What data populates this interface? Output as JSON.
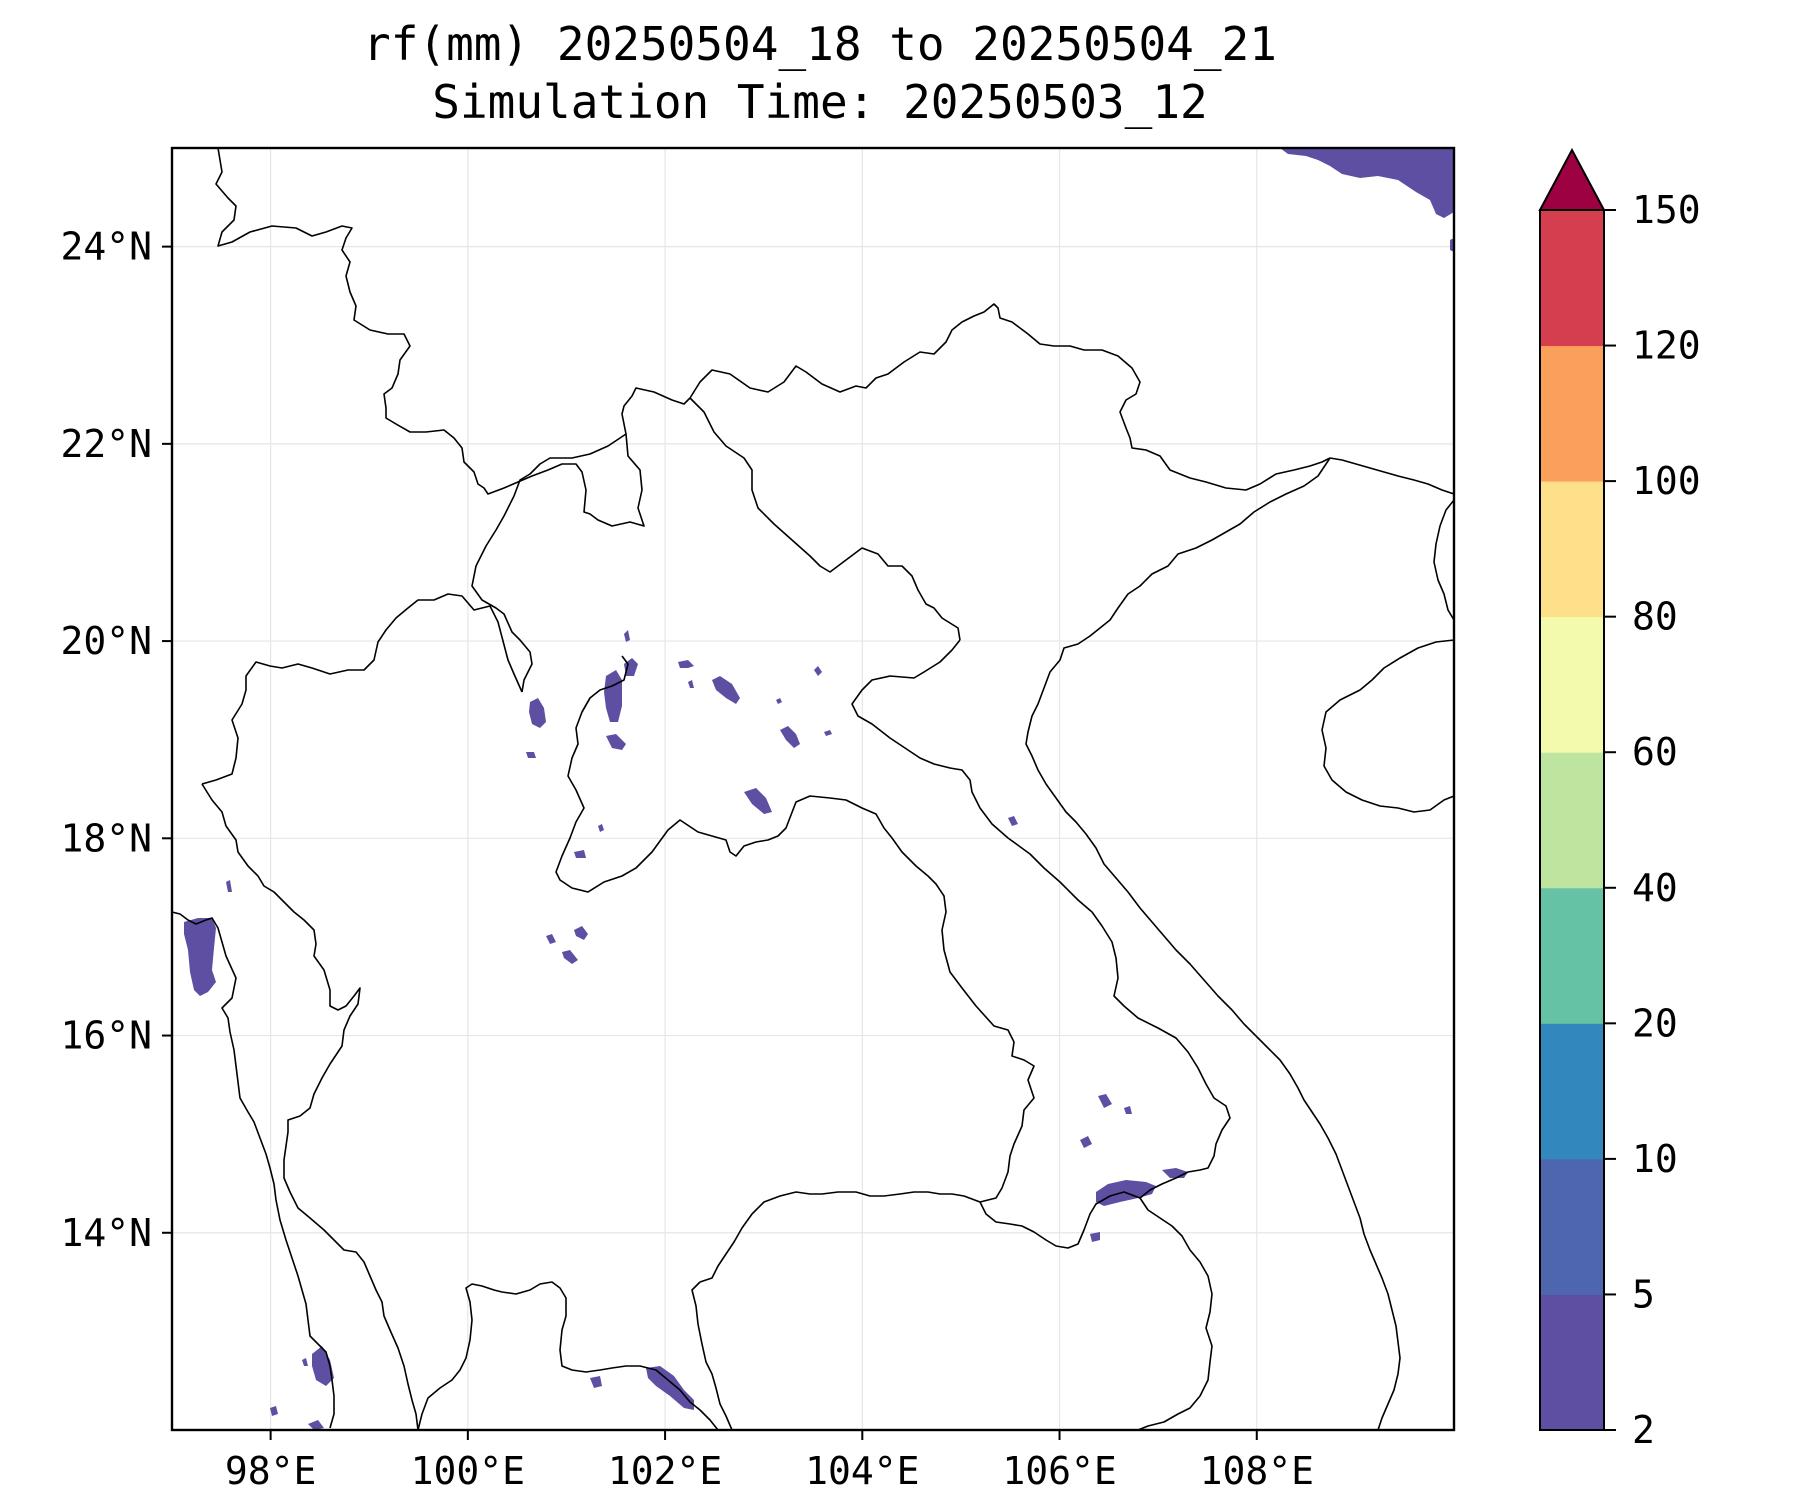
{
  "title": {
    "line1": "rf(mm) 20250504_18 to 20250504_21",
    "line2": "Simulation Time: 20250503_12"
  },
  "map": {
    "lon_range": [
      97.0,
      110.0
    ],
    "lat_range": [
      12.0,
      25.0
    ],
    "x_ticks": [
      {
        "value": 98,
        "label": "98°E"
      },
      {
        "value": 100,
        "label": "100°E"
      },
      {
        "value": 102,
        "label": "102°E"
      },
      {
        "value": 104,
        "label": "104°E"
      },
      {
        "value": 106,
        "label": "106°E"
      },
      {
        "value": 108,
        "label": "108°E"
      }
    ],
    "y_ticks": [
      {
        "value": 24,
        "label": "24°N"
      },
      {
        "value": 22,
        "label": "22°N"
      },
      {
        "value": 20,
        "label": "20°N"
      },
      {
        "value": 18,
        "label": "18°N"
      },
      {
        "value": 16,
        "label": "16°N"
      },
      {
        "value": 14,
        "label": "14°N"
      }
    ],
    "grid": true,
    "rain_color": "#5e4fa2"
  },
  "colorbar": {
    "extend": "max",
    "extend_color": "#9e0142",
    "levels": [
      {
        "value": 2,
        "label": "2"
      },
      {
        "value": 5,
        "label": "5"
      },
      {
        "value": 10,
        "label": "10"
      },
      {
        "value": 20,
        "label": "20"
      },
      {
        "value": 40,
        "label": "40"
      },
      {
        "value": 60,
        "label": "60"
      },
      {
        "value": 80,
        "label": "80"
      },
      {
        "value": 100,
        "label": "100"
      },
      {
        "value": 120,
        "label": "120"
      },
      {
        "value": 150,
        "label": "150"
      }
    ],
    "colors": [
      "#5e4fa2",
      "#4e66ad",
      "#3288bd",
      "#66c2a5",
      "#bde5a0",
      "#f4faad",
      "#fee08b",
      "#fba05b",
      "#d53e4f"
    ]
  }
}
